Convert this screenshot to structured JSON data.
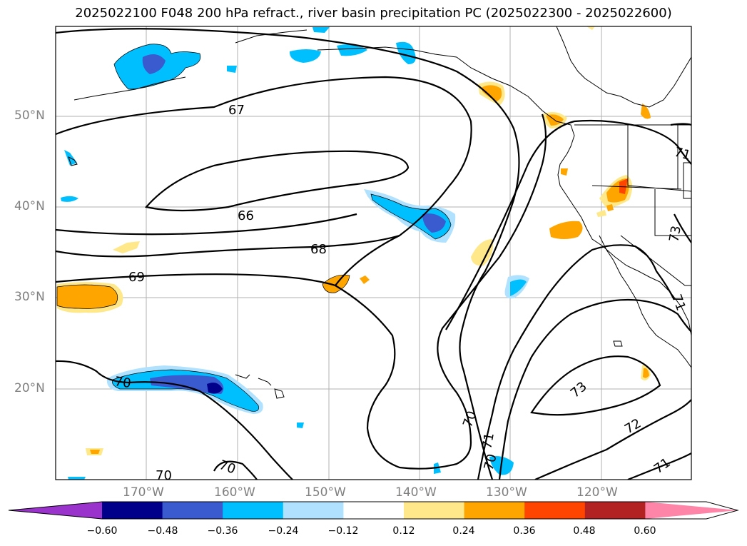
{
  "title": "2025022100 F048 200 hPa refract., river basin precipitation PC (2025022300 - 2025022600)",
  "latitude_labels": [
    "50°N",
    "40°N",
    "30°N",
    "20°N"
  ],
  "longitude_labels": [
    "170°W",
    "160°W",
    "150°W",
    "140°W",
    "130°W",
    "120°W"
  ],
  "contour_labels": [
    "67",
    "66",
    "68",
    "69",
    "70",
    "70",
    "70",
    "70",
    "70",
    "71",
    "71",
    "71",
    "72",
    "73",
    "73",
    "71"
  ],
  "colorbar": {
    "ticks": [
      "−0.60",
      "−0.48",
      "−0.36",
      "−0.24",
      "−0.12",
      "0.12",
      "0.24",
      "0.36",
      "0.48",
      "0.60"
    ],
    "colors": [
      "#9933cc",
      "#00008b",
      "#3a5bd0",
      "#00bfff",
      "#b0e2ff",
      "#ffffff",
      "#ffe88a",
      "#ffa500",
      "#ff4500",
      "#b22222",
      "#ff85a8"
    ]
  }
}
